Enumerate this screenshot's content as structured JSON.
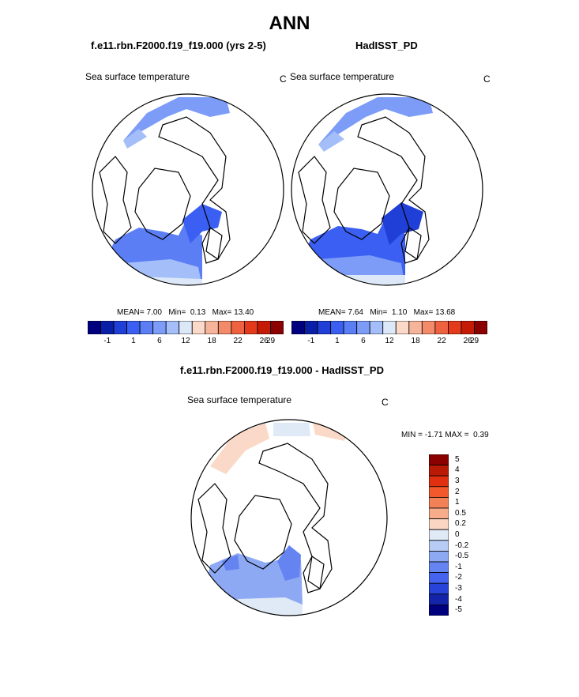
{
  "page": {
    "title": "ANN"
  },
  "panels": [
    {
      "title": "f.e11.rbn.F2000.f19_f19.000 (yrs 2-5)",
      "variable": "Sea surface temperature",
      "units": "C",
      "stats": {
        "mean_label": "MEAN=",
        "mean": "7.00",
        "min_label": "Min=",
        "min": "0.13",
        "max_label": "Max=",
        "max": "13.40"
      }
    },
    {
      "title": "HadISST_PD",
      "variable": "Sea surface temperature",
      "units": "C",
      "stats": {
        "mean_label": "MEAN=",
        "mean": "7.64",
        "min_label": "Min=",
        "min": "1.10",
        "max_label": "Max=",
        "max": "13.68"
      }
    },
    {
      "title": "f.e11.rbn.F2000.f19_f19.000 - HadISST_PD",
      "variable": "Sea surface temperature",
      "units": "C",
      "stats": {
        "min_label": "MIN =",
        "min": "-1.71",
        "max_label": "MAX =",
        "max": "0.39"
      }
    }
  ],
  "colorbars": {
    "absolute": {
      "colors": [
        "#00007f",
        "#0a1fa8",
        "#1f3fd6",
        "#3a5ff2",
        "#5b7ef5",
        "#7c9cf7",
        "#a4bef9",
        "#dce8f7",
        "#fbd9c8",
        "#f6b49a",
        "#f38b6a",
        "#ee6240",
        "#e43a1c",
        "#c41a06",
        "#8b0000"
      ],
      "tick_labels": [
        "-1",
        "1",
        "6",
        "12",
        "18",
        "22",
        "26",
        "29"
      ],
      "tick_positions": [
        1,
        3,
        5,
        7,
        9,
        11,
        13,
        14
      ]
    },
    "difference": {
      "colors": [
        "#8b0000",
        "#b81a06",
        "#e03010",
        "#f2582b",
        "#f38158",
        "#f7ad8a",
        "#fbd6c3",
        "#dfeaf6",
        "#b7cbf5",
        "#8da9f4",
        "#6584f2",
        "#4563ef",
        "#2743da",
        "#1424a8",
        "#00007f"
      ],
      "tick_labels": [
        "5",
        "4",
        "3",
        "2",
        "1",
        "0.5",
        "0.2",
        "0",
        "-0.2",
        "-0.5",
        "-1",
        "-2",
        "-3",
        "-4",
        "-5"
      ]
    }
  },
  "chart_data": [
    {
      "type": "heatmap",
      "title": "f.e11.rbn.F2000.f19_f19.000 (yrs 2-5)",
      "variable": "Sea surface temperature",
      "units": "C",
      "projection": "north polar stereographic",
      "levels": [
        -1,
        1,
        6,
        12,
        18,
        22,
        26,
        29
      ],
      "summary": {
        "mean": 7.0,
        "min": 0.13,
        "max": 13.4
      }
    },
    {
      "type": "heatmap",
      "title": "HadISST_PD",
      "variable": "Sea surface temperature",
      "units": "C",
      "projection": "north polar stereographic",
      "levels": [
        -1,
        1,
        6,
        12,
        18,
        22,
        26,
        29
      ],
      "summary": {
        "mean": 7.64,
        "min": 1.1,
        "max": 13.68
      }
    },
    {
      "type": "heatmap",
      "title": "f.e11.rbn.F2000.f19_f19.000 - HadISST_PD",
      "variable": "Sea surface temperature",
      "units": "C",
      "projection": "north polar stereographic",
      "levels": [
        -5,
        -4,
        -3,
        -2,
        -1,
        -0.5,
        -0.2,
        0,
        0.2,
        0.5,
        1,
        2,
        3,
        4,
        5
      ],
      "summary": {
        "min": -1.71,
        "max": 0.39
      }
    }
  ]
}
